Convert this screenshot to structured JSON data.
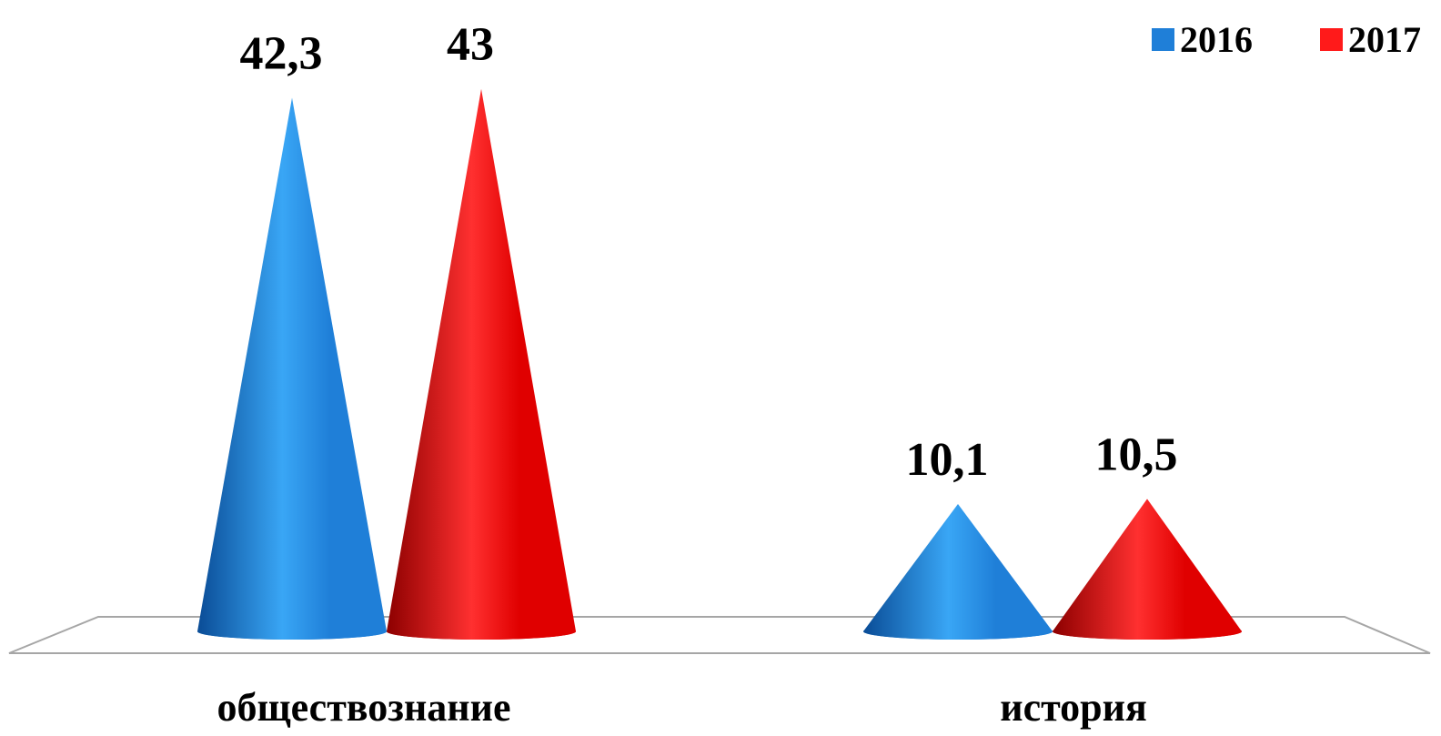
{
  "chart_data": {
    "type": "bar",
    "bar_shape": "cone",
    "categories": [
      "обществознание",
      "история"
    ],
    "series": [
      {
        "name": "2016",
        "values": [
          42.3,
          10.1
        ],
        "labels": [
          "42,3",
          "10,1"
        ],
        "color": "#1F7FD8"
      },
      {
        "name": "2017",
        "values": [
          43,
          10.5
        ],
        "labels": [
          "43",
          "10,5"
        ],
        "color": "#FF1A1A"
      }
    ],
    "title": "",
    "xlabel": "",
    "ylabel": "",
    "ylim": [
      0,
      45
    ],
    "grid": false,
    "legend": "top-right",
    "data_labels": true
  }
}
